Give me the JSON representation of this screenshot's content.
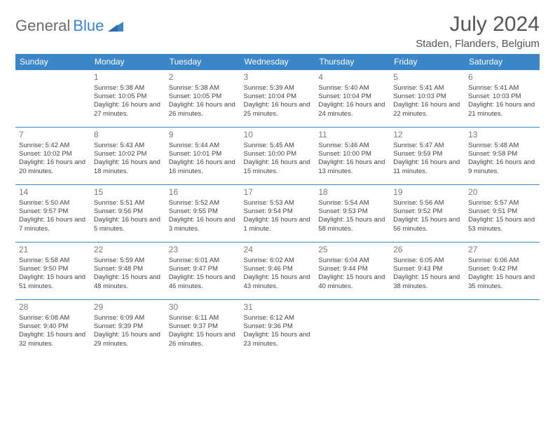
{
  "brand": {
    "word1": "General",
    "word2": "Blue"
  },
  "title": "July 2024",
  "location": "Staden, Flanders, Belgium",
  "colors": {
    "accent": "#3b86c7",
    "text": "#444444",
    "muted": "#7a7a7a",
    "bg": "#ffffff"
  },
  "typography": {
    "base_font": "Arial",
    "cell_fontsize_pt": 7,
    "header_fontsize_pt": 9,
    "title_fontsize_pt": 22
  },
  "calendar": {
    "type": "table",
    "columns": [
      "Sunday",
      "Monday",
      "Tuesday",
      "Wednesday",
      "Thursday",
      "Friday",
      "Saturday"
    ],
    "weeks": [
      [
        null,
        {
          "d": "1",
          "sr": "5:38 AM",
          "ss": "10:05 PM",
          "dl": "16 hours and 27 minutes."
        },
        {
          "d": "2",
          "sr": "5:38 AM",
          "ss": "10:05 PM",
          "dl": "16 hours and 26 minutes."
        },
        {
          "d": "3",
          "sr": "5:39 AM",
          "ss": "10:04 PM",
          "dl": "16 hours and 25 minutes."
        },
        {
          "d": "4",
          "sr": "5:40 AM",
          "ss": "10:04 PM",
          "dl": "16 hours and 24 minutes."
        },
        {
          "d": "5",
          "sr": "5:41 AM",
          "ss": "10:03 PM",
          "dl": "16 hours and 22 minutes."
        },
        {
          "d": "6",
          "sr": "5:41 AM",
          "ss": "10:03 PM",
          "dl": "16 hours and 21 minutes."
        }
      ],
      [
        {
          "d": "7",
          "sr": "5:42 AM",
          "ss": "10:02 PM",
          "dl": "16 hours and 20 minutes."
        },
        {
          "d": "8",
          "sr": "5:43 AM",
          "ss": "10:02 PM",
          "dl": "16 hours and 18 minutes."
        },
        {
          "d": "9",
          "sr": "5:44 AM",
          "ss": "10:01 PM",
          "dl": "16 hours and 16 minutes."
        },
        {
          "d": "10",
          "sr": "5:45 AM",
          "ss": "10:00 PM",
          "dl": "16 hours and 15 minutes."
        },
        {
          "d": "11",
          "sr": "5:46 AM",
          "ss": "10:00 PM",
          "dl": "16 hours and 13 minutes."
        },
        {
          "d": "12",
          "sr": "5:47 AM",
          "ss": "9:59 PM",
          "dl": "16 hours and 11 minutes."
        },
        {
          "d": "13",
          "sr": "5:48 AM",
          "ss": "9:58 PM",
          "dl": "16 hours and 9 minutes."
        }
      ],
      [
        {
          "d": "14",
          "sr": "5:50 AM",
          "ss": "9:57 PM",
          "dl": "16 hours and 7 minutes."
        },
        {
          "d": "15",
          "sr": "5:51 AM",
          "ss": "9:56 PM",
          "dl": "16 hours and 5 minutes."
        },
        {
          "d": "16",
          "sr": "5:52 AM",
          "ss": "9:55 PM",
          "dl": "16 hours and 3 minutes."
        },
        {
          "d": "17",
          "sr": "5:53 AM",
          "ss": "9:54 PM",
          "dl": "16 hours and 1 minute."
        },
        {
          "d": "18",
          "sr": "5:54 AM",
          "ss": "9:53 PM",
          "dl": "15 hours and 58 minutes."
        },
        {
          "d": "19",
          "sr": "5:56 AM",
          "ss": "9:52 PM",
          "dl": "15 hours and 56 minutes."
        },
        {
          "d": "20",
          "sr": "5:57 AM",
          "ss": "9:51 PM",
          "dl": "15 hours and 53 minutes."
        }
      ],
      [
        {
          "d": "21",
          "sr": "5:58 AM",
          "ss": "9:50 PM",
          "dl": "15 hours and 51 minutes."
        },
        {
          "d": "22",
          "sr": "5:59 AM",
          "ss": "9:48 PM",
          "dl": "15 hours and 48 minutes."
        },
        {
          "d": "23",
          "sr": "6:01 AM",
          "ss": "9:47 PM",
          "dl": "15 hours and 46 minutes."
        },
        {
          "d": "24",
          "sr": "6:02 AM",
          "ss": "9:46 PM",
          "dl": "15 hours and 43 minutes."
        },
        {
          "d": "25",
          "sr": "6:04 AM",
          "ss": "9:44 PM",
          "dl": "15 hours and 40 minutes."
        },
        {
          "d": "26",
          "sr": "6:05 AM",
          "ss": "9:43 PM",
          "dl": "15 hours and 38 minutes."
        },
        {
          "d": "27",
          "sr": "6:06 AM",
          "ss": "9:42 PM",
          "dl": "15 hours and 35 minutes."
        }
      ],
      [
        {
          "d": "28",
          "sr": "6:08 AM",
          "ss": "9:40 PM",
          "dl": "15 hours and 32 minutes."
        },
        {
          "d": "29",
          "sr": "6:09 AM",
          "ss": "9:39 PM",
          "dl": "15 hours and 29 minutes."
        },
        {
          "d": "30",
          "sr": "6:11 AM",
          "ss": "9:37 PM",
          "dl": "15 hours and 26 minutes."
        },
        {
          "d": "31",
          "sr": "6:12 AM",
          "ss": "9:36 PM",
          "dl": "15 hours and 23 minutes."
        },
        null,
        null,
        null
      ]
    ],
    "labels": {
      "sunrise": "Sunrise:",
      "sunset": "Sunset:",
      "daylight": "Daylight:"
    }
  }
}
